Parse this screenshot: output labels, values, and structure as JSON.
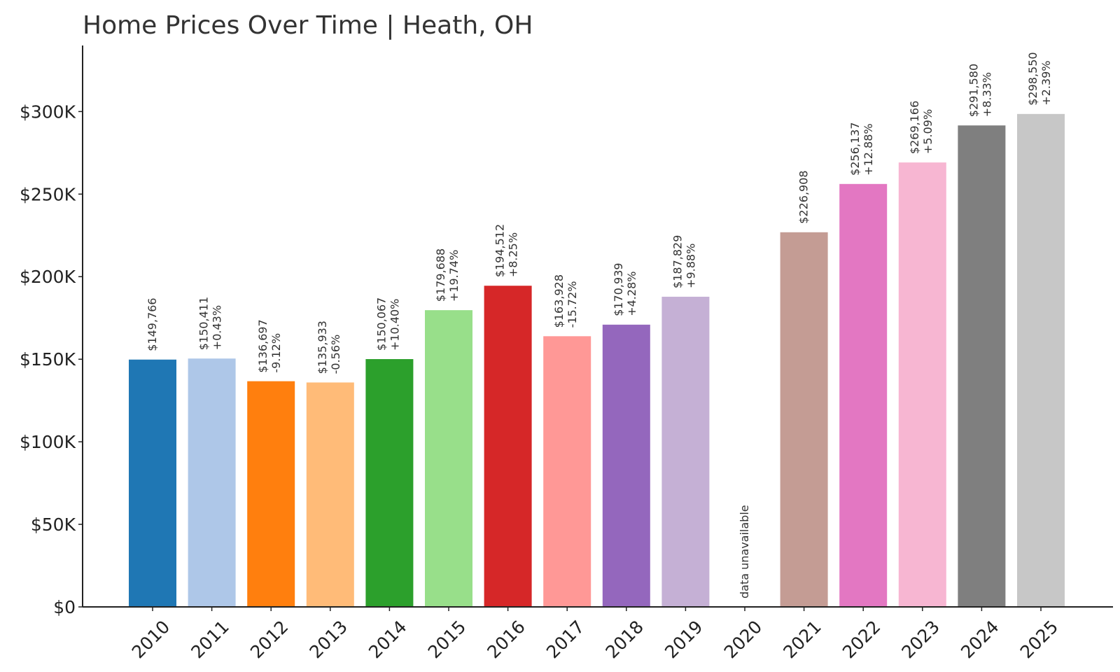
{
  "chart_data": {
    "type": "bar",
    "title": "Home Prices Over Time | Heath, OH",
    "xlabel": "",
    "ylabel": "",
    "ylim": [
      0,
      340000
    ],
    "yticks": [
      0,
      50000,
      100000,
      150000,
      200000,
      250000,
      300000
    ],
    "ytick_labels": [
      "$0",
      "$50K",
      "$100K",
      "$150K",
      "$200K",
      "$250K",
      "$300K"
    ],
    "grid": false,
    "categories": [
      "2010",
      "2011",
      "2012",
      "2013",
      "2014",
      "2015",
      "2016",
      "2017",
      "2018",
      "2019",
      "2020",
      "2021",
      "2022",
      "2023",
      "2024",
      "2025"
    ],
    "values": [
      149766,
      150411,
      136697,
      135933,
      150067,
      179688,
      194512,
      163928,
      170939,
      187829,
      null,
      226908,
      256137,
      269166,
      291580,
      298550
    ],
    "value_labels": [
      "$149,766",
      "$150,411",
      "$136,697",
      "$135,933",
      "$150,067",
      "$179,688",
      "$194,512",
      "$163,928",
      "$170,939",
      "$187,829",
      "data unavailable",
      "$226,908",
      "$256,137",
      "$269,166",
      "$291,580",
      "$298,550"
    ],
    "change_labels": [
      "",
      "+0.43%",
      "-9.12%",
      "-0.56%",
      "+10.40%",
      "+19.74%",
      "+8.25%",
      "-15.72%",
      "+4.28%",
      "+9.88%",
      "",
      "",
      "+12.88%",
      "+5.09%",
      "+8.33%",
      "+2.39%"
    ],
    "colors": [
      "#1f77b4",
      "#aec7e8",
      "#ff7f0e",
      "#ffbb78",
      "#2ca02c",
      "#98df8a",
      "#d62728",
      "#ff9896",
      "#9467bd",
      "#c5b0d5",
      "#8c564b",
      "#c49c94",
      "#e377c2",
      "#f7b6d2",
      "#7f7f7f",
      "#c7c7c7"
    ]
  }
}
